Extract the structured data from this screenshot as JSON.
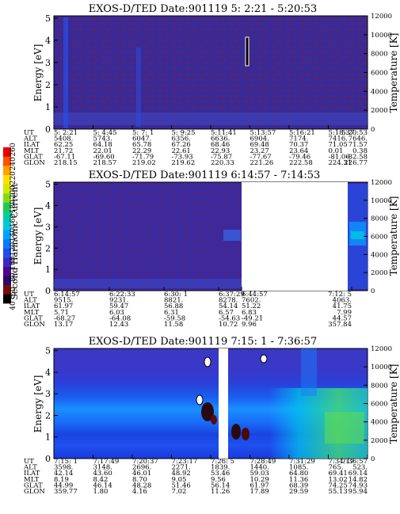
{
  "colorbar": {
    "label": "Second Harmonic Current",
    "ticks": [
      "40",
      "60",
      "80",
      "100",
      "120",
      "140",
      "160",
      "180",
      "200",
      "220",
      "240",
      "260"
    ],
    "colors": [
      "#000000",
      "#7a0a0a",
      "#2a0a6a",
      "#4b0a8c",
      "#3a28c8",
      "#1e4ef0",
      "#0a78ff",
      "#00a0ff",
      "#00c8e0",
      "#00d0a0",
      "#20c850",
      "#80dc14",
      "#d2e800",
      "#ffe000",
      "#ffa000",
      "#ff5000",
      "#e80000"
    ]
  },
  "panels": [
    {
      "title": "EXOS-D/TED   Date:901119   5: 2:21 - 5:20:53",
      "ylabel_left": "Energy [eV]",
      "ylabel_right": "Temperature [K]",
      "yticks_left": [
        "0",
        "1",
        "2",
        "3",
        "4",
        "5"
      ],
      "yticks_right": [
        "0",
        "2000",
        "4000",
        "6000",
        "8000",
        "10000",
        "12000"
      ],
      "rows": [
        {
          "label": "UT",
          "values": [
            "5: 2:21",
            "5: 4:45",
            "5: 7: 1",
            "5: 9:25",
            "5:11:41",
            "5:13:57",
            "5:16:21",
            "5:18:37",
            "5:20:53"
          ]
        },
        {
          "label": "ALT",
          "values": [
            "5408.",
            "5743.",
            "6047.",
            "6356.",
            "6636.",
            "6904.",
            "7174.",
            "7416.",
            "7646."
          ]
        },
        {
          "label": "ILAT",
          "values": [
            "62.25",
            "64.18",
            "65.78",
            "67.26",
            "68.46",
            "69.48",
            "70.37",
            "71.05",
            "71.57"
          ]
        },
        {
          "label": "MLT",
          "values": [
            "21.72",
            "22.01",
            "22.29",
            "22.61",
            "22.93",
            "23.27",
            "23.64",
            "0.01",
            "0.38"
          ]
        },
        {
          "label": "GLAT",
          "values": [
            "-67.11",
            "-69.60",
            "-71.79",
            "-73.93",
            "-75.87",
            "-77.67",
            "-79.46",
            "-81.06",
            "-82.58"
          ]
        },
        {
          "label": "GLON",
          "values": [
            "218.15",
            "218.57",
            "219.02",
            "219.62",
            "220.33",
            "221.26",
            "222.58",
            "224.31",
            "226.77"
          ]
        }
      ]
    },
    {
      "title": "EXOS-D/TED   Date:901119   6:14:57 - 7:14:53",
      "ylabel_left": "Energy [eV]",
      "ylabel_right": "Temperature [K]",
      "yticks_left": [
        "0",
        "1",
        "2",
        "3",
        "4",
        "5"
      ],
      "yticks_right": [
        "0",
        "2000",
        "4000",
        "6000",
        "8000",
        "10000",
        "12000"
      ],
      "rows": [
        {
          "label": "UT",
          "values": [
            "6:14:57",
            "6:22:33",
            "6:30: 1",
            "6:37:29",
            "6:44:57",
            "7:12: 5"
          ]
        },
        {
          "label": "ALT",
          "values": [
            "9515.",
            "9231.",
            "8821.",
            "8278.",
            "7602.",
            "4063."
          ]
        },
        {
          "label": "ILAT",
          "values": [
            "61.97",
            "59.47",
            "56.88",
            "54.14",
            "51.22",
            "41.75"
          ]
        },
        {
          "label": "MLT",
          "values": [
            "5.71",
            "6.03",
            "6.31",
            "6.57",
            "6.83",
            "7.99"
          ]
        },
        {
          "label": "GLAT",
          "values": [
            "-68.27",
            "-64.08",
            "-59.58",
            "-54.63",
            "-49.21",
            "44.57"
          ]
        },
        {
          "label": "GLON",
          "values": [
            "13.17",
            "12.43",
            "11.58",
            "10.72",
            "9.96",
            "357.84"
          ]
        }
      ]
    },
    {
      "title": "EXOS-D/TED   Date:901119   7:15: 1 - 7:36:57",
      "ylabel_left": "Energy [eV]",
      "ylabel_right": "Temperature [K]",
      "yticks_left": [
        "0",
        "1",
        "2",
        "3",
        "4",
        "5"
      ],
      "yticks_right": [
        "0",
        "2000",
        "4000",
        "6000",
        "8000",
        "10000",
        "12000"
      ],
      "rows": [
        {
          "label": "UT",
          "values": [
            "7:15: 1",
            "7:17:49",
            "7:20:37",
            "7:23:17",
            "7:26: 5",
            "7:28:49",
            "7:31:29",
            "7:34:17",
            "7:36:57"
          ]
        },
        {
          "label": "ALT",
          "values": [
            "3598.",
            "3148.",
            "2696.",
            "2271.",
            "1839.",
            "1440.",
            "1085.",
            "765.",
            "523."
          ]
        },
        {
          "label": "ILAT",
          "values": [
            "42.14",
            "43.60",
            "46.01",
            "48.92",
            "53.46",
            "59.03",
            "64.80",
            "69.41",
            "69.14"
          ]
        },
        {
          "label": "MLT",
          "values": [
            "8.19",
            "8.42",
            "8.70",
            "9.05",
            "9.56",
            "10.29",
            "11.36",
            "13.02",
            "14.82"
          ]
        },
        {
          "label": "GLAT",
          "values": [
            "44.99",
            "46.14",
            "48.28",
            "51.46",
            "56.14",
            "61.97",
            "68.39",
            "74.25",
            "74.93"
          ]
        },
        {
          "label": "GLON",
          "values": [
            "359.77",
            "1.80",
            "4.16",
            "7.02",
            "11.26",
            "17.89",
            "29.59",
            "55.13",
            "95.94"
          ]
        }
      ]
    }
  ],
  "chart_data": [
    {
      "type": "heatmap",
      "title": "EXOS-D/TED   Date:901119   5: 2:21 - 5:20:53",
      "x": [
        "5: 2:21",
        "5: 4:45",
        "5: 7: 1",
        "5: 9:25",
        "5:11:41",
        "5:13:57",
        "5:16:21",
        "5:18:37",
        "5:20:53"
      ],
      "ylabel": "Energy [eV]",
      "ylim": [
        0,
        5
      ],
      "y2label": "Temperature [K]",
      "y2lim": [
        0,
        12000
      ],
      "colorbar_label": "Second Harmonic Current",
      "colorbar_range": [
        40,
        260
      ]
    },
    {
      "type": "heatmap",
      "title": "EXOS-D/TED   Date:901119   6:14:57 - 7:14:53",
      "x": [
        "6:14:57",
        "6:22:33",
        "6:30: 1",
        "6:37:29",
        "6:44:57",
        "7:12: 5"
      ],
      "ylabel": "Energy [eV]",
      "ylim": [
        0,
        5
      ],
      "y2label": "Temperature [K]",
      "y2lim": [
        0,
        12000
      ]
    },
    {
      "type": "heatmap",
      "title": "EXOS-D/TED   Date:901119   7:15: 1 - 7:36:57",
      "x": [
        "7:15: 1",
        "7:17:49",
        "7:20:37",
        "7:23:17",
        "7:26: 5",
        "7:28:49",
        "7:31:29",
        "7:34:17",
        "7:36:57"
      ],
      "ylabel": "Energy [eV]",
      "ylim": [
        0,
        5
      ],
      "y2label": "Temperature [K]",
      "y2lim": [
        0,
        12000
      ]
    }
  ]
}
